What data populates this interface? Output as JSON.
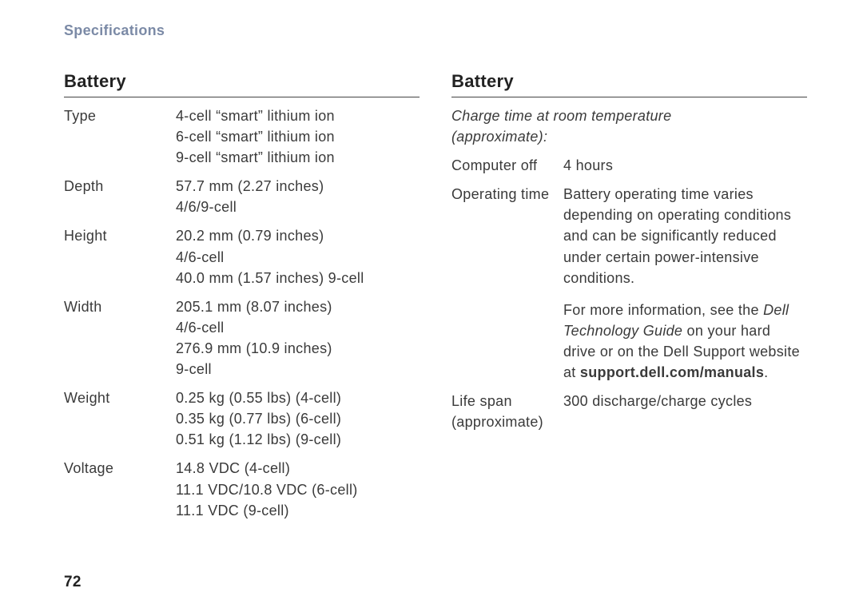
{
  "header": "Specifications",
  "page_number": "72",
  "left": {
    "title": "Battery",
    "rows": [
      {
        "label": "Type",
        "value": "4-cell “smart” lithium ion\n6-cell “smart” lithium ion\n9-cell “smart” lithium ion"
      },
      {
        "label": "Depth",
        "value": "57.7 mm (2.27 inches)\n4/6/9-cell"
      },
      {
        "label": "Height",
        "value": "20.2 mm (0.79 inches)\n4/6-cell\n40.0 mm (1.57 inches) 9-cell"
      },
      {
        "label": "Width",
        "value": "205.1 mm (8.07 inches)\n4/6-cell\n276.9 mm (10.9 inches)\n9-cell"
      },
      {
        "label": "Weight",
        "value": "0.25 kg (0.55 lbs) (4-cell)\n0.35 kg (0.77 lbs) (6-cell)\n0.51 kg (1.12 lbs) (9-cell)"
      },
      {
        "label": "Voltage",
        "value": "14.8 VDC (4-cell)\n11.1 VDC/10.8 VDC (6-cell)\n11.1 VDC (9-cell)"
      }
    ]
  },
  "right": {
    "title": "Battery",
    "charge_note": "Charge time at room temperature\n(approximate):",
    "computer_off": {
      "label": "Computer off",
      "value": "4 hours"
    },
    "operating_time": {
      "label": "Operating time",
      "para1": "Battery operating time varies depending on operating conditions and can be significantly reduced under certain power-intensive conditions.",
      "para2_pre": "For more information, see the ",
      "para2_em": "Dell Technology Guide",
      "para2_mid": " on your hard drive or on the Dell Support website at ",
      "para2_bold": "support.dell.com/manuals",
      "para2_post": "."
    },
    "life_span": {
      "label": "Life span\n(approximate)",
      "value": "300 discharge/charge cycles"
    }
  }
}
